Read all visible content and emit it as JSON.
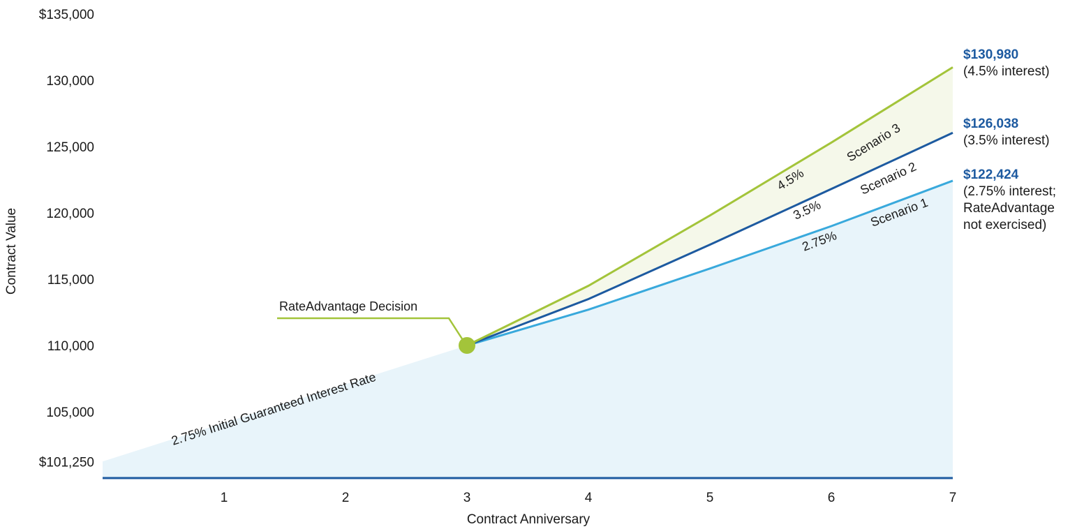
{
  "chart_data": {
    "type": "line",
    "xlabel": "Contract Anniversary",
    "ylabel": "Contract Value",
    "x_ticks": [
      "1",
      "2",
      "3",
      "4",
      "5",
      "6",
      "7"
    ],
    "xlim": [
      0,
      7
    ],
    "ylim": [
      100000,
      135000
    ],
    "y_ticks": [
      {
        "value": 101250,
        "label": "$101,250"
      },
      {
        "value": 105000,
        "label": "105,000"
      },
      {
        "value": 110000,
        "label": "110,000"
      },
      {
        "value": 115000,
        "label": "115,000"
      },
      {
        "value": 120000,
        "label": "120,000"
      },
      {
        "value": 125000,
        "label": "125,000"
      },
      {
        "value": 130000,
        "label": "130,000"
      },
      {
        "value": 135000,
        "label": "$135,000"
      }
    ],
    "initial_period": {
      "label": "2.75% Initial Guaranteed Interest Rate",
      "x": [
        0,
        3
      ],
      "y": [
        101250,
        110000
      ]
    },
    "decision_point": {
      "label": "RateAdvantage Decision",
      "x": 3,
      "y": 110000
    },
    "series": [
      {
        "name": "Scenario 1",
        "rate_label": "2.75%",
        "x": [
          3,
          4,
          5,
          6,
          7
        ],
        "y": [
          110000,
          112700,
          115800,
          119000,
          122424
        ],
        "color": "#39a9dc",
        "end_value": "$122,424",
        "end_note": [
          "(2.75% interest;",
          "RateAdvantage",
          "not exercised)"
        ]
      },
      {
        "name": "Scenario 2",
        "rate_label": "3.5%",
        "x": [
          3,
          4,
          5,
          6,
          7
        ],
        "y": [
          110000,
          113500,
          117600,
          121800,
          126038
        ],
        "color": "#1d5aa0",
        "end_value": "$126,038",
        "end_note": [
          "(3.5% interest)"
        ]
      },
      {
        "name": "Scenario 3",
        "rate_label": "4.5%",
        "x": [
          3,
          4,
          5,
          6,
          7
        ],
        "y": [
          110000,
          114500,
          119800,
          125300,
          130980
        ],
        "color": "#a3c43a",
        "end_value": "$130,980",
        "end_note": [
          "(4.5% interest)"
        ]
      }
    ],
    "colors": {
      "area_base": "#e8f4fa",
      "area_upper": "#f5f8ea",
      "baseline": "#1d5aa0",
      "decision_marker": "#a3c43a"
    }
  }
}
